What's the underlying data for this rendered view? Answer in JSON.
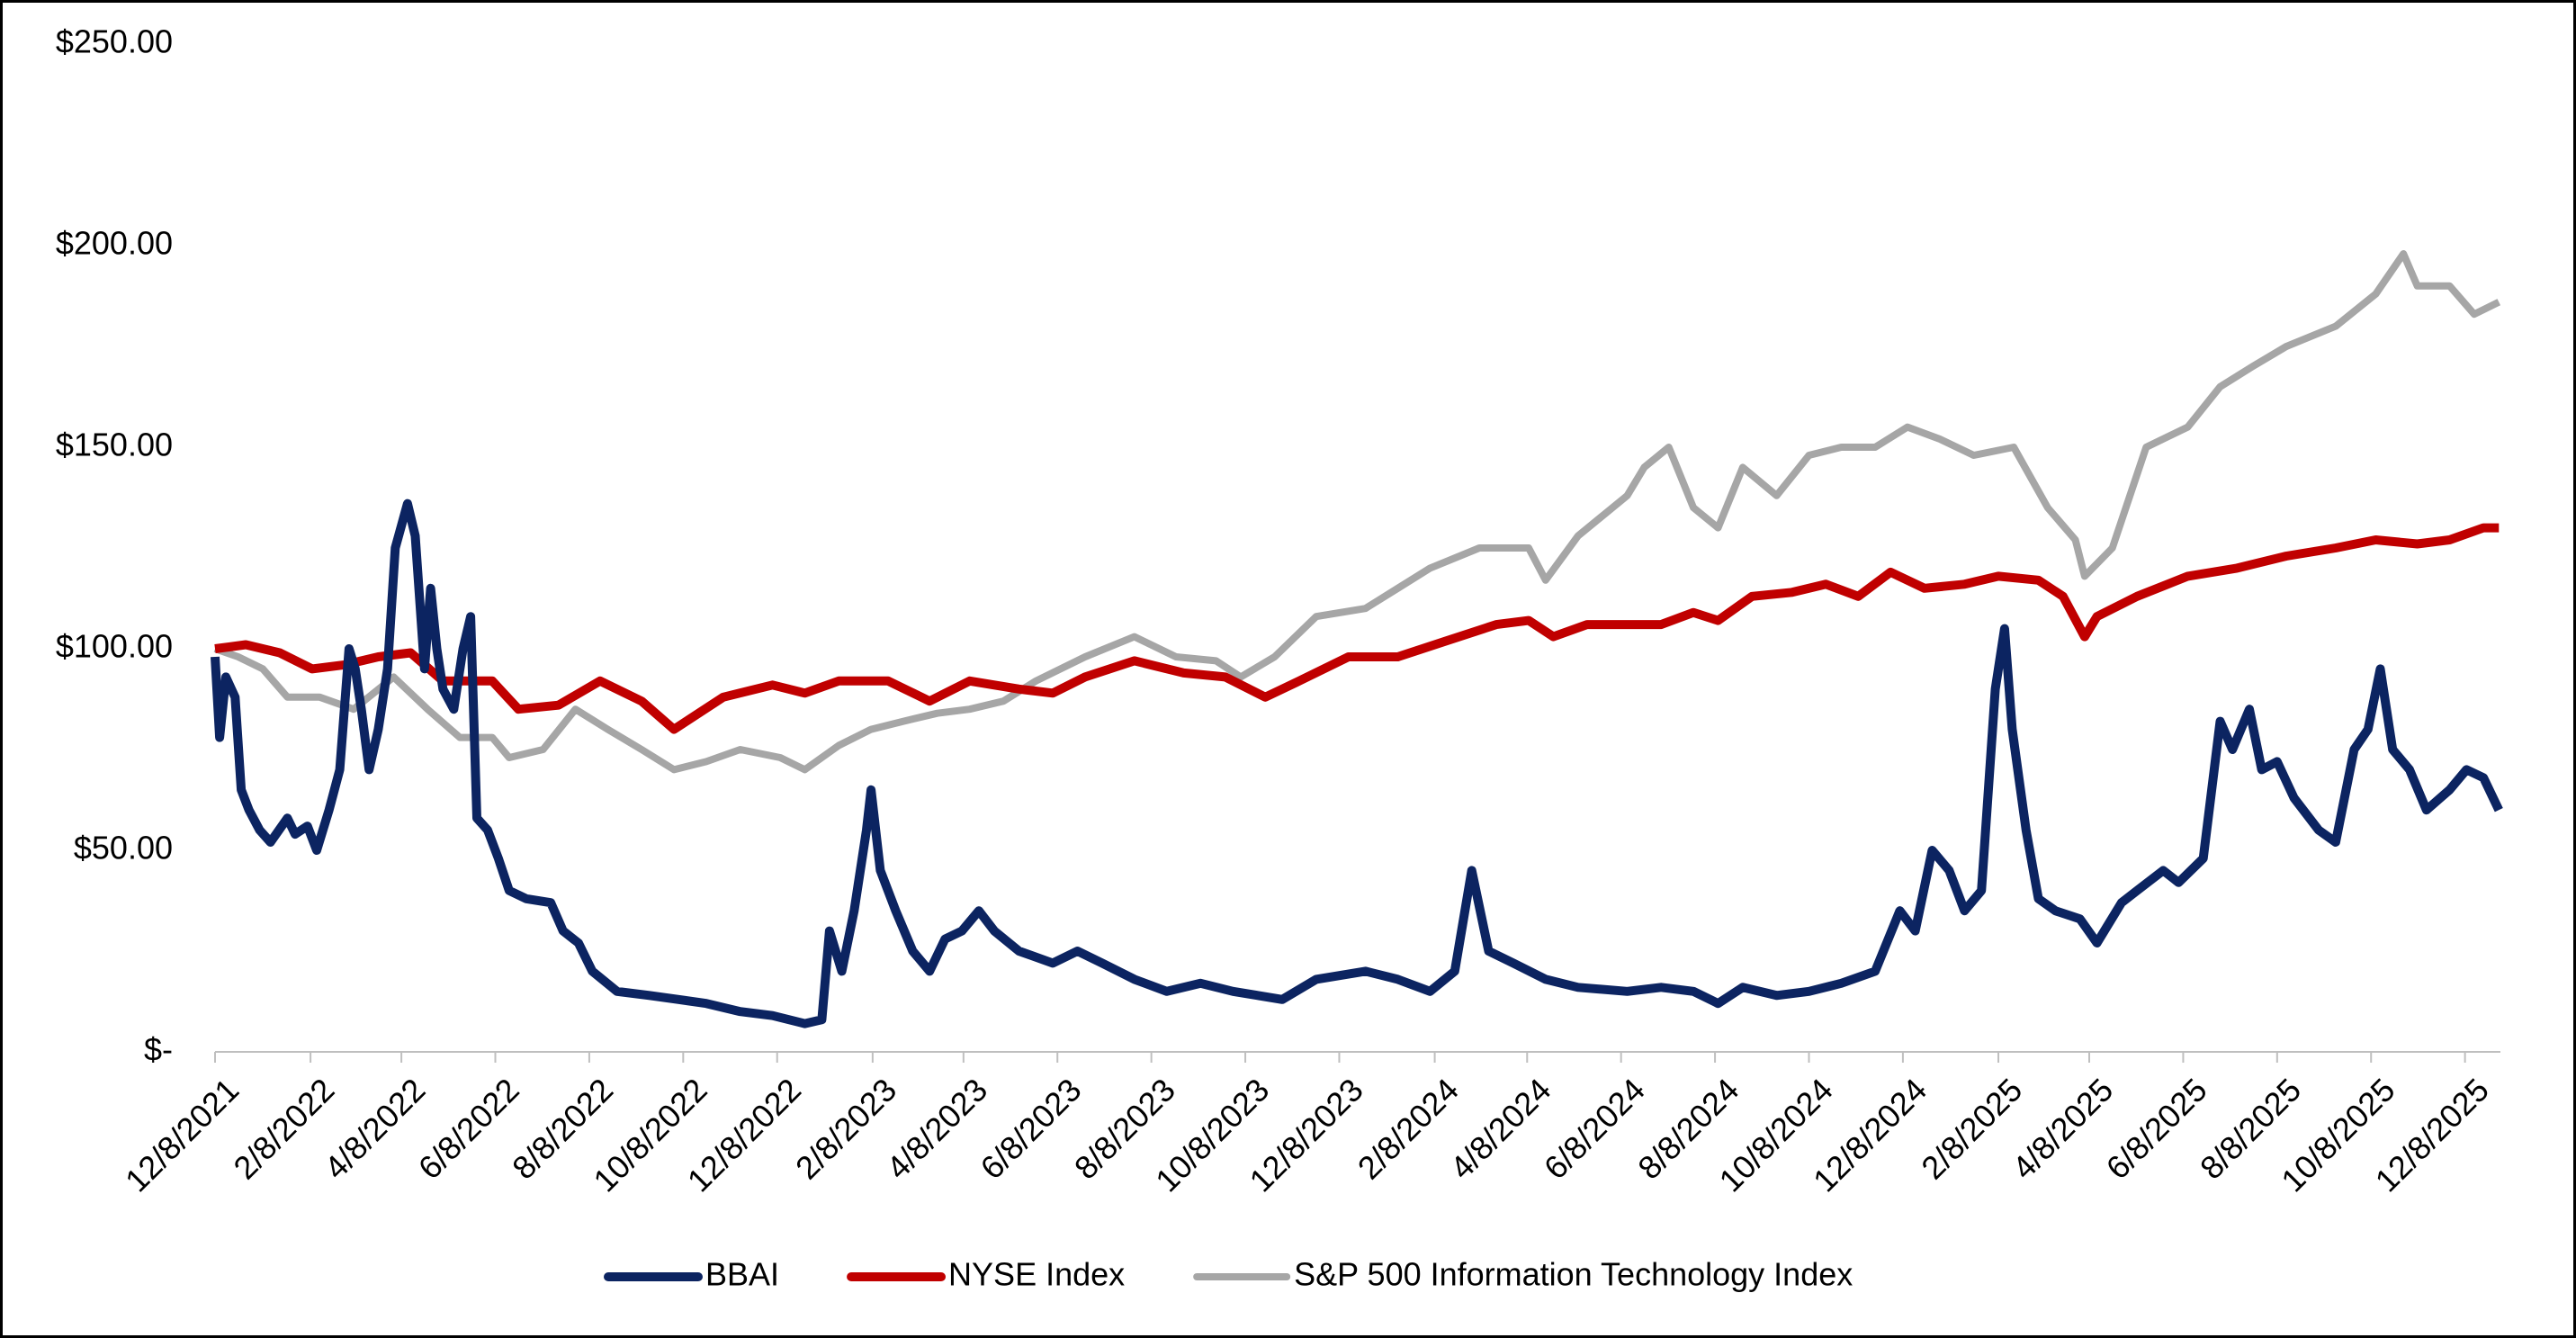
{
  "chart_data": {
    "type": "line",
    "xlim": [
      "12/8/2021",
      "12/31/2025"
    ],
    "xticks": [
      "12/8/2021",
      "2/8/2022",
      "4/8/2022",
      "6/8/2022",
      "8/8/2022",
      "10/8/2022",
      "12/8/2022",
      "2/8/2023",
      "4/8/2023",
      "6/8/2023",
      "8/8/2023",
      "10/8/2023",
      "12/8/2023",
      "2/8/2024",
      "4/8/2024",
      "6/8/2024",
      "8/8/2024",
      "10/8/2024",
      "12/8/2024",
      "2/8/2025",
      "4/8/2025",
      "6/8/2025",
      "8/8/2025",
      "10/8/2025",
      "12/8/2025"
    ],
    "ylim": [
      0,
      250
    ],
    "yticks": [
      {
        "value": 0,
        "label": "$-"
      },
      {
        "value": 50,
        "label": "$50.00"
      },
      {
        "value": 100,
        "label": "$100.00"
      },
      {
        "value": 150,
        "label": "$150.00"
      },
      {
        "value": 200,
        "label": "$200.00"
      },
      {
        "value": 250,
        "label": "$250.00"
      }
    ],
    "grid": false,
    "legend": "bottom",
    "series": [
      {
        "name": "BBAI",
        "color": "#0c2461",
        "x": [
          "12/8/2021",
          "12/11/2021",
          "12/15/2021",
          "12/21/2021",
          "12/25/2021",
          "12/30/2021",
          "1/6/2022",
          "1/13/2022",
          "1/24/2022",
          "1/29/2022",
          "2/6/2022",
          "2/12/2022",
          "2/20/2022",
          "2/27/2022",
          "3/5/2022",
          "3/9/2022",
          "3/13/2022",
          "3/18/2022",
          "3/24/2022",
          "3/30/2022",
          "4/4/2022",
          "4/12/2022",
          "4/17/2022",
          "4/23/2022",
          "4/27/2022",
          "5/1/2022",
          "5/5/2022",
          "5/12/2022",
          "5/18/2022",
          "5/23/2022",
          "5/27/2022",
          "6/3/2022",
          "6/10/2022",
          "6/17/2022",
          "6/28/2022",
          "7/14/2022",
          "7/22/2022",
          "8/1/2022",
          "8/10/2022",
          "8/26/2022",
          "9/16/2022",
          "10/5/2022",
          "10/23/2022",
          "11/14/2022",
          "12/5/2022",
          "12/26/2022",
          "1/6/2023",
          "1/11/2023",
          "1/19/2023",
          "1/27/2023",
          "2/4/2023",
          "2/7/2023",
          "2/13/2023",
          "2/23/2023",
          "3/6/2023",
          "3/17/2023",
          "3/27/2023",
          "4/7/2023",
          "4/18/2023",
          "4/28/2023",
          "5/14/2023",
          "6/5/2023",
          "6/21/2023",
          "7/7/2023",
          "7/28/2023",
          "8/18/2023",
          "9/9/2023",
          "9/30/2023",
          "11/1/2023",
          "11/23/2023",
          "12/25/2023",
          "1/15/2024",
          "2/5/2024",
          "2/21/2024",
          "3/3/2024",
          "3/14/2024",
          "3/30/2024",
          "4/20/2024",
          "5/11/2024",
          "6/12/2024",
          "7/4/2024",
          "7/25/2024",
          "8/10/2024",
          "8/26/2024",
          "9/17/2024",
          "10/8/2024",
          "10/29/2024",
          "11/20/2024",
          "12/6/2024",
          "12/16/2024",
          "12/27/2024",
          "1/7/2025",
          "1/17/2025",
          "1/28/2025",
          "2/6/2025",
          "2/12/2025",
          "2/17/2025",
          "2/26/2025",
          "3/6/2025",
          "3/17/2025",
          "4/2/2025",
          "4/13/2025",
          "4/29/2025",
          "5/9/2025",
          "5/26/2025",
          "6/5/2025",
          "6/21/2025",
          "7/2/2025",
          "7/10/2025",
          "7/21/2025",
          "7/29/2025",
          "8/8/2025",
          "8/19/2025",
          "9/4/2025",
          "9/15/2025",
          "9/27/2025",
          "10/6/2025",
          "10/14/2025",
          "10/22/2025",
          "11/2/2025",
          "11/13/2025",
          "11/28/2025",
          "12/9/2025",
          "12/20/2025",
          "12/30/2025"
        ],
        "values": [
          98,
          78,
          93,
          88,
          65,
          60,
          55,
          52,
          58,
          54,
          56,
          50,
          60,
          70,
          100,
          95,
          85,
          70,
          80,
          95,
          125,
          136,
          128,
          95,
          115,
          100,
          90,
          85,
          100,
          108,
          58,
          55,
          48,
          40,
          38,
          37,
          30,
          27,
          20,
          15,
          14,
          13,
          12,
          10,
          9,
          7,
          8,
          30,
          20,
          35,
          55,
          65,
          45,
          35,
          25,
          20,
          28,
          30,
          35,
          30,
          25,
          22,
          25,
          22,
          18,
          15,
          17,
          15,
          13,
          18,
          20,
          18,
          15,
          20,
          45,
          25,
          22,
          18,
          16,
          15,
          16,
          15,
          12,
          16,
          14,
          15,
          17,
          20,
          35,
          30,
          50,
          45,
          35,
          40,
          90,
          105,
          80,
          55,
          38,
          35,
          33,
          27,
          37,
          40,
          45,
          42,
          48,
          82,
          75,
          85,
          70,
          72,
          63,
          55,
          52,
          75,
          80,
          95,
          75,
          70,
          60,
          65,
          70,
          68,
          60
        ]
      },
      {
        "name": "NYSE Index",
        "color": "#c00000",
        "x": [
          "12/8/2021",
          "12/28/2021",
          "1/19/2022",
          "2/9/2022",
          "3/2/2022",
          "3/24/2022",
          "4/14/2022",
          "5/5/2022",
          "6/6/2022",
          "6/23/2022",
          "7/19/2022",
          "8/15/2022",
          "9/11/2022",
          "10/2/2022",
          "11/3/2022",
          "12/5/2022",
          "12/26/2022",
          "1/17/2023",
          "2/18/2023",
          "3/17/2023",
          "4/12/2023",
          "5/14/2023",
          "6/5/2023",
          "6/26/2023",
          "7/28/2023",
          "8/29/2023",
          "9/25/2023",
          "10/21/2023",
          "11/12/2023",
          "12/14/2023",
          "1/15/2024",
          "2/16/2024",
          "3/19/2024",
          "4/9/2024",
          "4/25/2024",
          "5/17/2024",
          "6/7/2024",
          "7/4/2024",
          "7/25/2024",
          "8/10/2024",
          "9/1/2024",
          "9/27/2024",
          "10/19/2024",
          "11/9/2024",
          "11/30/2024",
          "12/22/2024",
          "1/17/2025",
          "2/8/2025",
          "3/6/2025",
          "3/22/2025",
          "4/5/2025",
          "4/13/2025",
          "5/9/2025",
          "6/11/2025",
          "7/13/2025",
          "8/14/2025",
          "9/15/2025",
          "10/11/2025",
          "11/7/2025",
          "11/28/2025",
          "12/20/2025",
          "12/30/2025"
        ],
        "values": [
          100,
          101,
          99,
          95,
          96,
          98,
          99,
          92,
          92,
          85,
          86,
          92,
          87,
          80,
          88,
          91,
          89,
          92,
          92,
          87,
          92,
          90,
          89,
          93,
          97,
          94,
          93,
          88,
          92,
          98,
          98,
          102,
          106,
          107,
          103,
          106,
          106,
          106,
          109,
          107,
          113,
          114,
          116,
          113,
          119,
          115,
          116,
          118,
          117,
          113,
          103,
          108,
          113,
          118,
          120,
          123,
          125,
          127,
          126,
          127,
          130,
          130
        ]
      },
      {
        "name": "S&P 500 Information Technology Index",
        "color": "#a6a6a6",
        "x": [
          "12/8/2021",
          "12/23/2021",
          "1/8/2022",
          "1/24/2022",
          "2/14/2022",
          "3/8/2022",
          "4/3/2022",
          "4/25/2022",
          "5/16/2022",
          "6/6/2022",
          "6/17/2022",
          "7/9/2022",
          "7/30/2022",
          "8/20/2022",
          "9/11/2022",
          "10/2/2022",
          "10/23/2022",
          "11/14/2022",
          "12/10/2022",
          "12/26/2022",
          "1/17/2023",
          "2/7/2023",
          "2/28/2023",
          "3/22/2023",
          "4/12/2023",
          "5/4/2023",
          "5/25/2023",
          "6/26/2023",
          "7/28/2023",
          "8/24/2023",
          "9/19/2023",
          "10/5/2023",
          "10/27/2023",
          "11/23/2023",
          "12/25/2023",
          "1/15/2024",
          "2/5/2024",
          "3/8/2024",
          "4/9/2024",
          "4/20/2024",
          "5/11/2024",
          "6/12/2024",
          "6/23/2024",
          "7/9/2024",
          "7/25/2024",
          "8/10/2024",
          "8/26/2024",
          "9/17/2024",
          "10/8/2024",
          "10/29/2024",
          "11/20/2024",
          "12/11/2024",
          "1/1/2025",
          "1/23/2025",
          "2/18/2025",
          "3/12/2025",
          "3/30/2025",
          "4/5/2025",
          "4/23/2025",
          "5/15/2025",
          "6/11/2025",
          "7/2/2025",
          "7/23/2025",
          "8/14/2025",
          "9/15/2025",
          "10/11/2025",
          "10/29/2025",
          "11/7/2025",
          "11/28/2025",
          "12/14/2025",
          "12/30/2025"
        ],
        "values": [
          100,
          98,
          95,
          88,
          88,
          85,
          93,
          85,
          78,
          78,
          73,
          75,
          85,
          80,
          75,
          70,
          72,
          75,
          73,
          70,
          76,
          80,
          82,
          84,
          85,
          87,
          92,
          98,
          103,
          98,
          97,
          93,
          98,
          108,
          110,
          115,
          120,
          125,
          125,
          117,
          128,
          138,
          145,
          150,
          135,
          130,
          145,
          138,
          148,
          150,
          150,
          155,
          152,
          148,
          150,
          135,
          127,
          118,
          125,
          150,
          155,
          165,
          170,
          175,
          180,
          188,
          198,
          190,
          190,
          183,
          186
        ]
      }
    ]
  }
}
